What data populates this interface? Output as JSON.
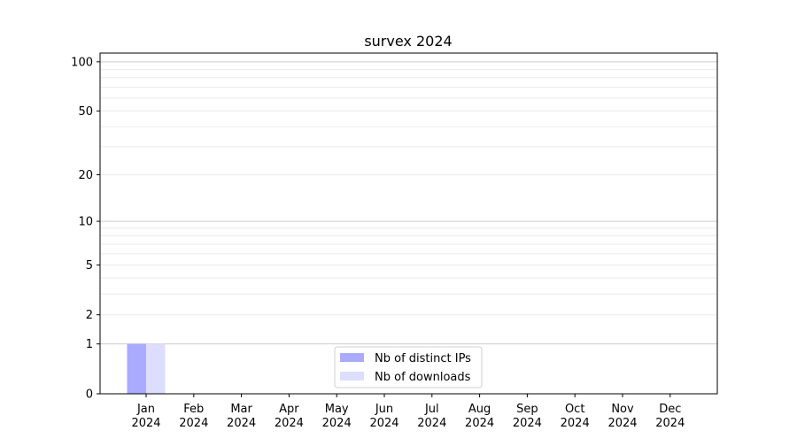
{
  "chart_data": {
    "type": "bar",
    "title": "survex 2024",
    "xlabel": "",
    "ylabel": "",
    "yscale": "log(1+y)",
    "ylim": [
      0,
      113
    ],
    "yticks": [
      0,
      1,
      2,
      5,
      10,
      20,
      50,
      100
    ],
    "ytick_labels": [
      "0",
      "1",
      "2",
      "5",
      "10",
      "20",
      "50",
      "100"
    ],
    "grid": true,
    "legend_position": "bottom-center",
    "categories": [
      "Jan\n2024",
      "Feb\n2024",
      "Mar\n2024",
      "Apr\n2024",
      "May\n2024",
      "Jun\n2024",
      "Jul\n2024",
      "Aug\n2024",
      "Sep\n2024",
      "Oct\n2024",
      "Nov\n2024",
      "Dec\n2024"
    ],
    "series": [
      {
        "name": "Nb of distinct IPs",
        "color": "#aaaaff",
        "values": [
          1,
          0,
          0,
          0,
          0,
          0,
          0,
          0,
          0,
          0,
          0,
          0
        ]
      },
      {
        "name": "Nb of downloads",
        "color": "#ddddff",
        "values": [
          1,
          0,
          0,
          0,
          0,
          0,
          0,
          0,
          0,
          0,
          0,
          0
        ]
      }
    ]
  }
}
